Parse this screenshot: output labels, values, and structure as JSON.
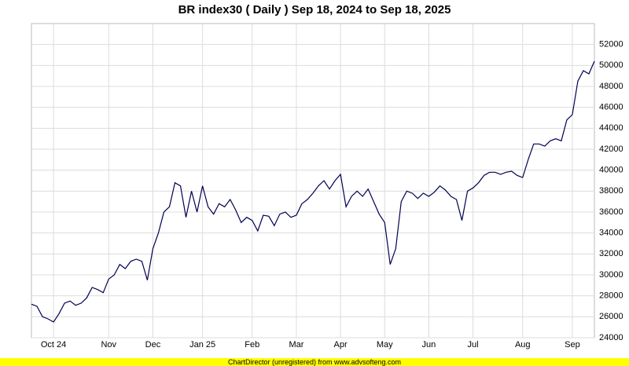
{
  "chart_data": {
    "type": "line",
    "title": "BR index30 ( Daily ) Sep 18, 2024 to Sep 18, 2025",
    "footer": "ChartDirector (unregistered) from www.advsofteng.com",
    "categories": [
      null,
      null,
      null,
      null,
      "Oct 24",
      null,
      null,
      null,
      null,
      null,
      null,
      null,
      null,
      null,
      "Nov",
      null,
      null,
      null,
      null,
      null,
      null,
      null,
      "Dec",
      null,
      null,
      null,
      null,
      null,
      null,
      null,
      null,
      "Jan 25",
      null,
      null,
      null,
      null,
      null,
      null,
      null,
      null,
      "Feb",
      null,
      null,
      null,
      null,
      null,
      null,
      null,
      "Mar",
      null,
      null,
      null,
      null,
      null,
      null,
      null,
      "Apr",
      null,
      null,
      null,
      null,
      null,
      null,
      null,
      "May",
      null,
      null,
      null,
      null,
      null,
      null,
      null,
      "Jun",
      null,
      null,
      null,
      null,
      null,
      null,
      null,
      "Jul",
      null,
      null,
      null,
      null,
      null,
      null,
      null,
      null,
      "Aug",
      null,
      null,
      null,
      null,
      null,
      null,
      null,
      null,
      "Sep",
      null,
      null,
      null,
      null
    ],
    "series": [
      {
        "name": "BR index30",
        "color": "#000050",
        "values": [
          27200,
          27000,
          26000,
          25800,
          25500,
          26300,
          27300,
          27500,
          27100,
          27300,
          27800,
          28800,
          28600,
          28300,
          29600,
          30000,
          31000,
          30600,
          31300,
          31500,
          31300,
          29500,
          32500,
          34000,
          36000,
          36500,
          38800,
          38500,
          35500,
          38000,
          36000,
          38500,
          36500,
          35800,
          36800,
          36500,
          37200,
          36200,
          35000,
          35500,
          35200,
          34200,
          35700,
          35600,
          34700,
          35800,
          36000,
          35500,
          35700,
          36800,
          37200,
          37800,
          38500,
          39000,
          38200,
          39000,
          39600,
          36500,
          37500,
          38000,
          37500,
          38200,
          37000,
          35800,
          35000,
          31000,
          32500,
          37000,
          38000,
          37800,
          37300,
          37800,
          37500,
          37900,
          38500,
          38100,
          37500,
          37200,
          35200,
          38000,
          38300,
          38800,
          39500,
          39800,
          39800,
          39600,
          39800,
          39900,
          39500,
          39300,
          41000,
          42500,
          42500,
          42300,
          42800,
          43000,
          42800,
          44800,
          45300,
          48500,
          49500,
          49200,
          50400
        ]
      }
    ],
    "ylim": [
      24000,
      54000
    ],
    "yticks": [
      24000,
      26000,
      28000,
      30000,
      32000,
      34000,
      36000,
      38000,
      40000,
      42000,
      44000,
      46000,
      48000,
      50000,
      52000
    ],
    "grid": true
  }
}
